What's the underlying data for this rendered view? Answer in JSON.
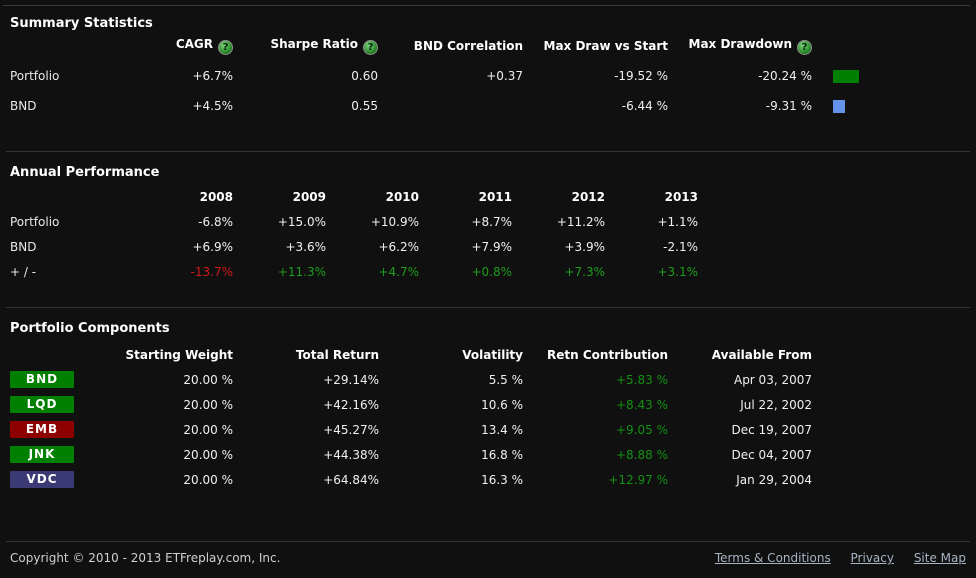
{
  "icons": {
    "help_glyph": "?"
  },
  "summary": {
    "title": "Summary Statistics",
    "columns": [
      "CAGR",
      "Sharpe Ratio",
      "BND Correlation",
      "Max Draw vs Start",
      "Max Drawdown"
    ],
    "rows": [
      {
        "label": "Portfolio",
        "cagr": "+6.7%",
        "sharpe": "0.60",
        "bnd_correlation": "+0.37",
        "max_draw_vs_start": "-19.52 %",
        "max_drawdown": "-20.24 %",
        "swatch_color": "#008000",
        "swatch_width": 26
      },
      {
        "label": "BND",
        "cagr": "+4.5%",
        "sharpe": "0.55",
        "bnd_correlation": "",
        "max_draw_vs_start": "-6.44 %",
        "max_drawdown": "-9.31 %",
        "swatch_color": "#6593ea",
        "swatch_width": 12
      }
    ]
  },
  "annual": {
    "title": "Annual Performance",
    "years": [
      "2008",
      "2009",
      "2010",
      "2011",
      "2012",
      "2013"
    ],
    "rows": [
      {
        "label": "Portfolio",
        "values": [
          "-6.8%",
          "+15.0%",
          "+10.9%",
          "+8.7%",
          "+11.2%",
          "+1.1%"
        ]
      },
      {
        "label": "BND",
        "values": [
          "+6.9%",
          "+3.6%",
          "+6.2%",
          "+7.9%",
          "+3.9%",
          "-2.1%"
        ]
      },
      {
        "label": "+ / -",
        "values": [
          "-13.7%",
          "+11.3%",
          "+4.7%",
          "+0.8%",
          "+7.3%",
          "+3.1%"
        ]
      }
    ]
  },
  "components": {
    "title": "Portfolio Components",
    "columns": [
      "Starting Weight",
      "Total Return",
      "Volatility",
      "Retn Contribution",
      "Available From"
    ],
    "rows": [
      {
        "ticker": "BND",
        "badge_color": "#008000",
        "starting_weight": "20.00 %",
        "total_return": "+29.14%",
        "volatility": "5.5 %",
        "retn_contribution": "+5.83 %",
        "available_from": "Apr 03, 2007"
      },
      {
        "ticker": "LQD",
        "badge_color": "#008000",
        "starting_weight": "20.00 %",
        "total_return": "+42.16%",
        "volatility": "10.6 %",
        "retn_contribution": "+8.43 %",
        "available_from": "Jul 22, 2002"
      },
      {
        "ticker": "EMB",
        "badge_color": "#8e0000",
        "starting_weight": "20.00 %",
        "total_return": "+45.27%",
        "volatility": "13.4 %",
        "retn_contribution": "+9.05 %",
        "available_from": "Dec 19, 2007"
      },
      {
        "ticker": "JNK",
        "badge_color": "#008000",
        "starting_weight": "20.00 %",
        "total_return": "+44.38%",
        "volatility": "16.8 %",
        "retn_contribution": "+8.88 %",
        "available_from": "Dec 04, 2007"
      },
      {
        "ticker": "VDC",
        "badge_color": "#3a3a74",
        "starting_weight": "20.00 %",
        "total_return": "+64.84%",
        "volatility": "16.3 %",
        "retn_contribution": "+12.97 %",
        "available_from": "Jan 29, 2004"
      }
    ]
  },
  "footer": {
    "copyright": "Copyright © 2010 - 2013 ETFreplay.com, Inc.",
    "links": [
      "Terms & Conditions",
      "Privacy",
      "Site Map"
    ]
  }
}
